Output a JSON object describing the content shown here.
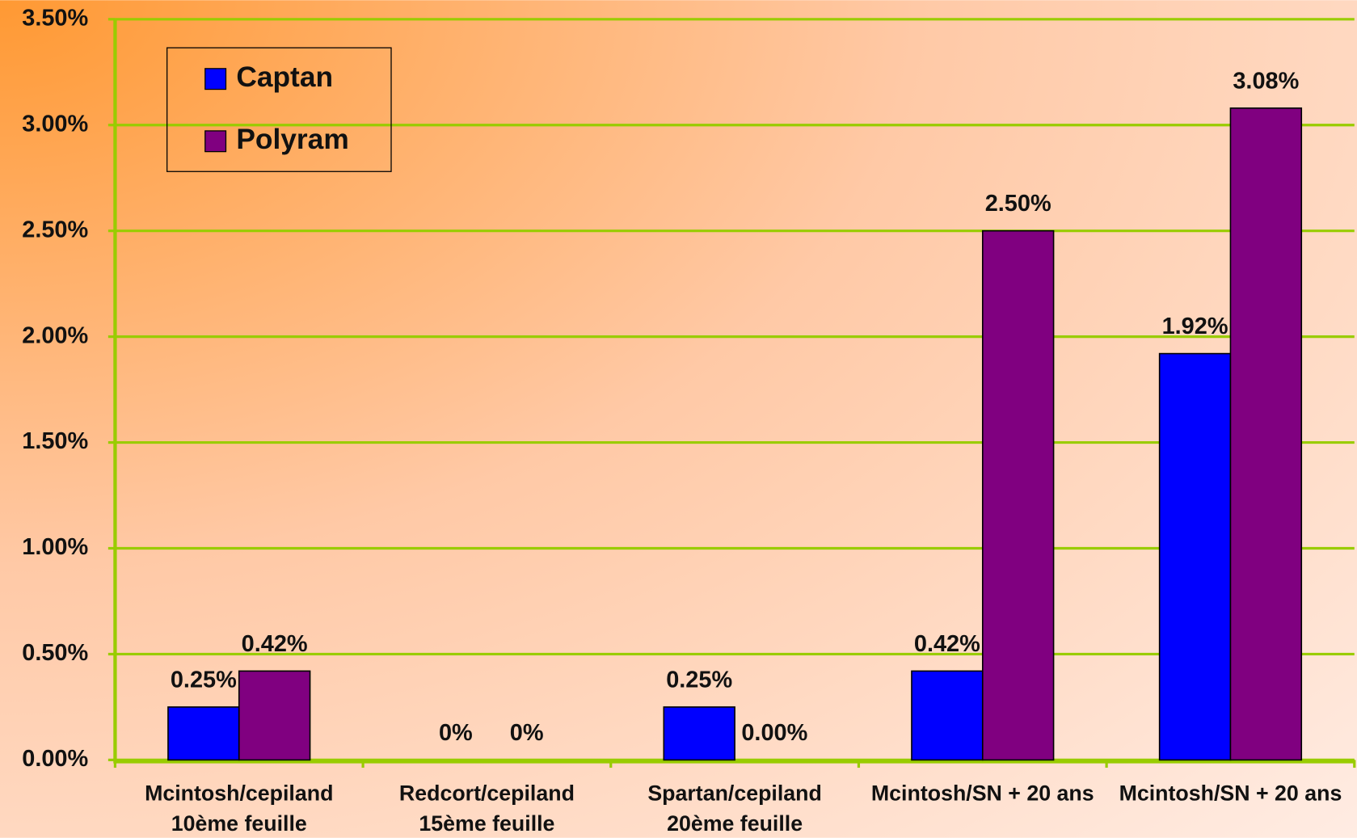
{
  "chart_data": {
    "type": "bar",
    "categories": [
      [
        "Mcintosh/cepiland",
        "10ème feuille"
      ],
      [
        "Redcort/cepiland",
        "15ème feuille"
      ],
      [
        "Spartan/cepiland",
        "20ème feuille"
      ],
      [
        "Mcintosh/SN + 20 ans"
      ],
      [
        "Mcintosh/SN + 20 ans"
      ]
    ],
    "series": [
      {
        "name": "Captan",
        "color": "#0000ff",
        "values": [
          0.25,
          0,
          0.25,
          0.42,
          1.92
        ],
        "value_labels": [
          "0.25%",
          "0%",
          "0.25%",
          "0.42%",
          "1.92%"
        ]
      },
      {
        "name": "Polyram",
        "color": "#800080",
        "values": [
          0.42,
          0,
          0,
          2.5,
          3.08
        ],
        "value_labels": [
          "0.42%",
          "0%",
          "0.00%",
          "2.50%",
          "3.08%"
        ]
      }
    ],
    "ylim": [
      0,
      3.5
    ],
    "yticks": [
      {
        "value": 0,
        "label": "0.00%"
      },
      {
        "value": 0.5,
        "label": "0.50%"
      },
      {
        "value": 1,
        "label": "1.00%"
      },
      {
        "value": 1.5,
        "label": "1.50%"
      },
      {
        "value": 2,
        "label": "2.00%"
      },
      {
        "value": 2.5,
        "label": "2.50%"
      },
      {
        "value": 3,
        "label": "3.00%"
      },
      {
        "value": 3.5,
        "label": "3.50%"
      }
    ],
    "grid": true,
    "legend": "top-left"
  }
}
